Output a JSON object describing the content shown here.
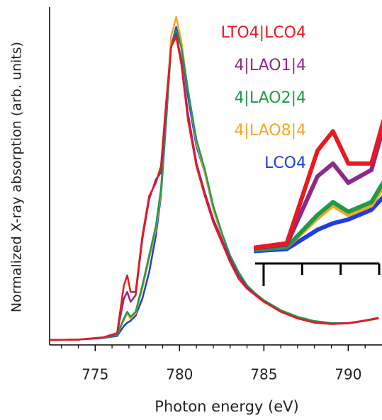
{
  "chart_data": {
    "type": "line",
    "xlabel": "Photon energy (eV)",
    "ylabel": "Normalized X-ray absorption (arb. units)",
    "x": [
      772.3,
      774,
      775.5,
      776.3,
      776.7,
      776.9,
      777.1,
      777.4,
      777.8,
      778.2,
      778.6,
      778.9,
      779.2,
      779.5,
      779.8,
      780.1,
      780.5,
      781,
      781.5,
      782,
      782.5,
      783,
      783.5,
      784,
      784.5,
      785,
      786,
      787,
      788,
      789,
      790,
      791,
      791.8
    ],
    "series": [
      {
        "name": "LTO4|LCO4",
        "color": "#e8191f",
        "values": [
          0.015,
          0.016,
          0.023,
          0.036,
          0.18,
          0.21,
          0.16,
          0.16,
          0.33,
          0.45,
          0.49,
          0.54,
          0.73,
          0.9,
          0.93,
          0.85,
          0.68,
          0.54,
          0.45,
          0.37,
          0.31,
          0.25,
          0.2,
          0.17,
          0.15,
          0.13,
          0.1,
          0.08,
          0.067,
          0.063,
          0.065,
          0.073,
          0.082
        ]
      },
      {
        "name": "4|LAO1|4",
        "color": "#8b2a8a",
        "values": [
          0.015,
          0.016,
          0.023,
          0.034,
          0.14,
          0.16,
          0.13,
          0.15,
          0.32,
          0.44,
          0.5,
          0.52,
          0.72,
          0.9,
          0.94,
          0.86,
          0.7,
          0.55,
          0.46,
          0.38,
          0.32,
          0.26,
          0.21,
          0.175,
          0.152,
          0.132,
          0.1,
          0.08,
          0.068,
          0.064,
          0.066,
          0.074,
          0.082
        ]
      },
      {
        "name": "4|LAO2|4",
        "color": "#1e9b4a",
        "values": [
          0.015,
          0.016,
          0.022,
          0.03,
          0.08,
          0.1,
          0.085,
          0.1,
          0.18,
          0.27,
          0.36,
          0.47,
          0.68,
          0.9,
          0.95,
          0.9,
          0.77,
          0.62,
          0.53,
          0.42,
          0.34,
          0.27,
          0.22,
          0.18,
          0.155,
          0.135,
          0.105,
          0.085,
          0.072,
          0.066,
          0.066,
          0.073,
          0.08
        ]
      },
      {
        "name": "4|LAO8|4",
        "color": "#f5a623",
        "values": [
          0.015,
          0.016,
          0.022,
          0.03,
          0.075,
          0.095,
          0.08,
          0.095,
          0.17,
          0.26,
          0.35,
          0.46,
          0.69,
          0.93,
          0.99,
          0.92,
          0.77,
          0.61,
          0.52,
          0.41,
          0.33,
          0.26,
          0.21,
          0.175,
          0.15,
          0.13,
          0.1,
          0.082,
          0.07,
          0.065,
          0.065,
          0.073,
          0.08
        ]
      },
      {
        "name": "LCO4",
        "color": "#1f3de0",
        "values": [
          0.015,
          0.016,
          0.021,
          0.027,
          0.057,
          0.067,
          0.073,
          0.088,
          0.14,
          0.22,
          0.33,
          0.45,
          0.67,
          0.9,
          0.96,
          0.9,
          0.75,
          0.6,
          0.52,
          0.41,
          0.33,
          0.26,
          0.2,
          0.17,
          0.15,
          0.13,
          0.1,
          0.082,
          0.071,
          0.065,
          0.065,
          0.073,
          0.08
        ]
      }
    ],
    "xlim": [
      772.3,
      792
    ],
    "ylim": [
      0,
      1.02
    ],
    "xticks": [
      775,
      780,
      785,
      790
    ],
    "xminorticks": [
      773,
      774,
      776,
      777,
      778,
      779,
      781,
      782,
      783,
      784,
      786,
      787,
      788,
      789,
      791
    ],
    "inset": {
      "xlim": [
        775.89,
        777.5
      ],
      "ylim": [
        0.02,
        0.227
      ],
      "xtick_marks": [
        776,
        776.5,
        777,
        777.5
      ]
    }
  }
}
